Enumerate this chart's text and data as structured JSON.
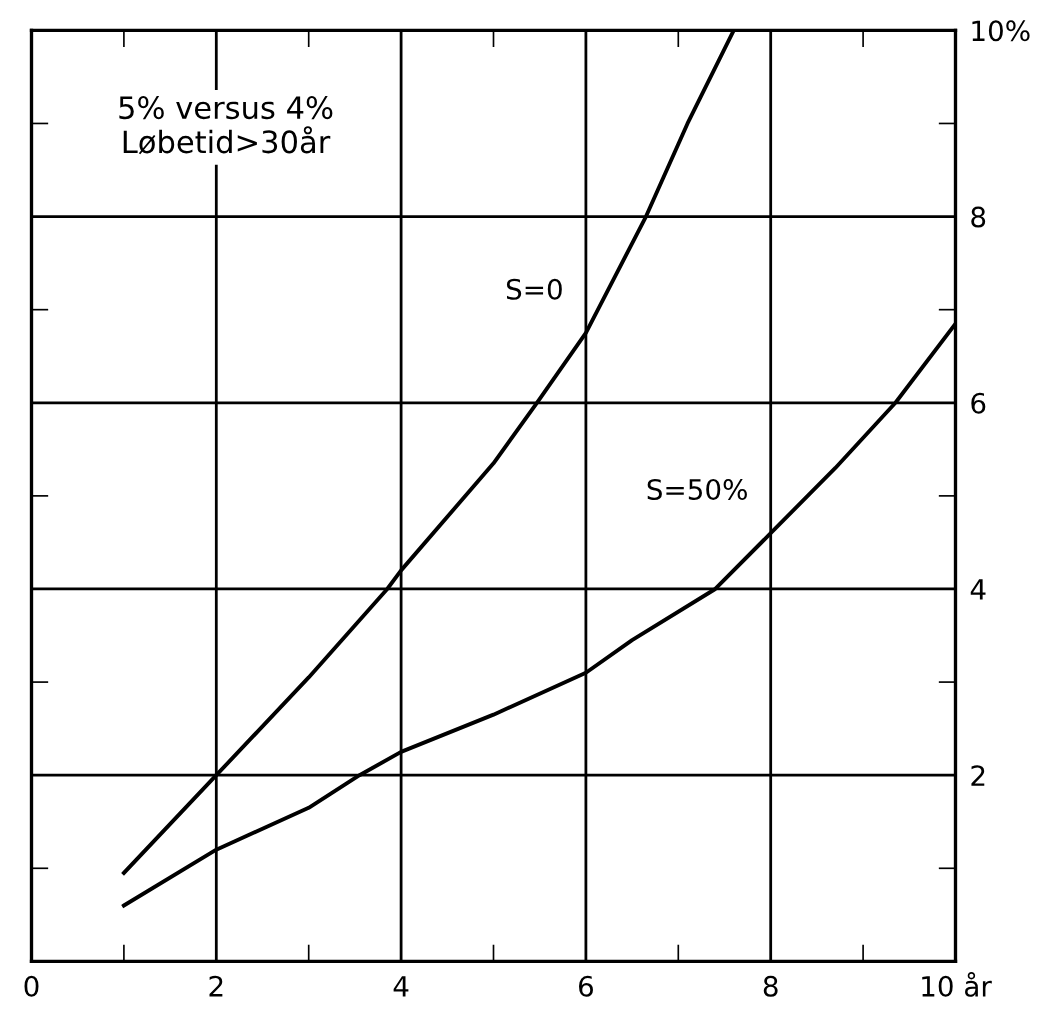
{
  "chart_data": {
    "type": "line",
    "annotations": [
      "5% versus 4%\nLøbetid>30år"
    ],
    "series": [
      {
        "name": "S=0",
        "color": "#000000",
        "x": [
          1,
          2,
          3,
          3.85,
          4,
          5,
          5.47,
          6,
          6.65,
          7.1,
          7.6
        ],
        "values": [
          0.95,
          2.0,
          3.05,
          4,
          4.2,
          5.35,
          6,
          6.75,
          8,
          9,
          10
        ]
      },
      {
        "name": "S=50%",
        "color": "#000000",
        "x": [
          1,
          2,
          3,
          3.55,
          4,
          5,
          6,
          6.5,
          7.4,
          8,
          8.7,
          9.35,
          10
        ],
        "values": [
          0.6,
          1.2,
          1.65,
          2,
          2.25,
          2.65,
          3.1,
          3.45,
          4,
          4.6,
          5.3,
          6,
          6.85
        ]
      }
    ],
    "xlim": [
      0,
      10
    ],
    "ylim": [
      0,
      10
    ],
    "xticks": [
      0,
      {
        "value": 1,
        "label": null
      },
      2,
      {
        "value": 3,
        "label": null
      },
      4,
      {
        "value": 5,
        "label": null
      },
      6,
      {
        "value": 7,
        "label": null
      },
      8,
      {
        "value": 9,
        "label": null
      },
      {
        "value": 10,
        "label": "10 år"
      }
    ],
    "yticks": [
      {
        "value": 1,
        "label": null
      },
      2,
      {
        "value": 3,
        "label": null
      },
      4,
      {
        "value": 5,
        "label": null
      },
      6,
      {
        "value": 7,
        "label": null
      },
      8,
      {
        "value": 9,
        "label": null
      },
      {
        "value": 10,
        "label": "10%"
      }
    ],
    "grid": true,
    "legend": false,
    "marker": "none",
    "line_style": "solid"
  }
}
